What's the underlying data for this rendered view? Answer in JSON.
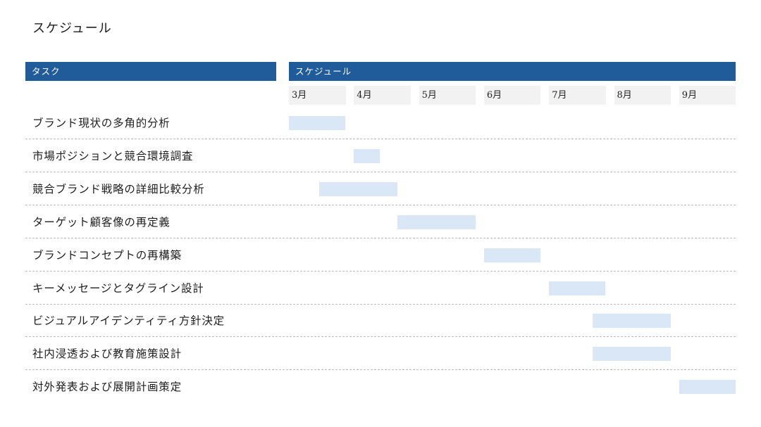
{
  "page": {
    "title": "スケジュール"
  },
  "header": {
    "task_col": "タスク",
    "schedule_col": "スケジュール"
  },
  "chart_data": {
    "type": "gantt",
    "months": [
      "3月",
      "4月",
      "5月",
      "6月",
      "7月",
      "8月",
      "9月"
    ],
    "tasks": [
      {
        "label": "ブランド現状の多角的分析",
        "start": 0.0,
        "end": 0.87
      },
      {
        "label": "市場ポジションと競合環境調査",
        "start": 1.0,
        "end": 1.4
      },
      {
        "label": "競合ブランド戦略の詳細比較分析",
        "start": 0.47,
        "end": 1.67
      },
      {
        "label": "ターゲット顧客像の再定義",
        "start": 1.67,
        "end": 2.87
      },
      {
        "label": "ブランドコンセプトの再構築",
        "start": 3.0,
        "end": 3.87
      },
      {
        "label": "キーメッセージとタグライン設計",
        "start": 4.0,
        "end": 4.87
      },
      {
        "label": "ビジュアルアイデンティティ方針決定",
        "start": 4.67,
        "end": 5.87
      },
      {
        "label": "社内浸透および教育施策設計",
        "start": 4.67,
        "end": 5.87
      },
      {
        "label": "対外発表および展開計画策定",
        "start": 6.0,
        "end": 6.87
      }
    ],
    "colors": {
      "header": "#1f5c99",
      "bar": "#dae7f6",
      "month_bg": "#f2f2f2"
    }
  }
}
